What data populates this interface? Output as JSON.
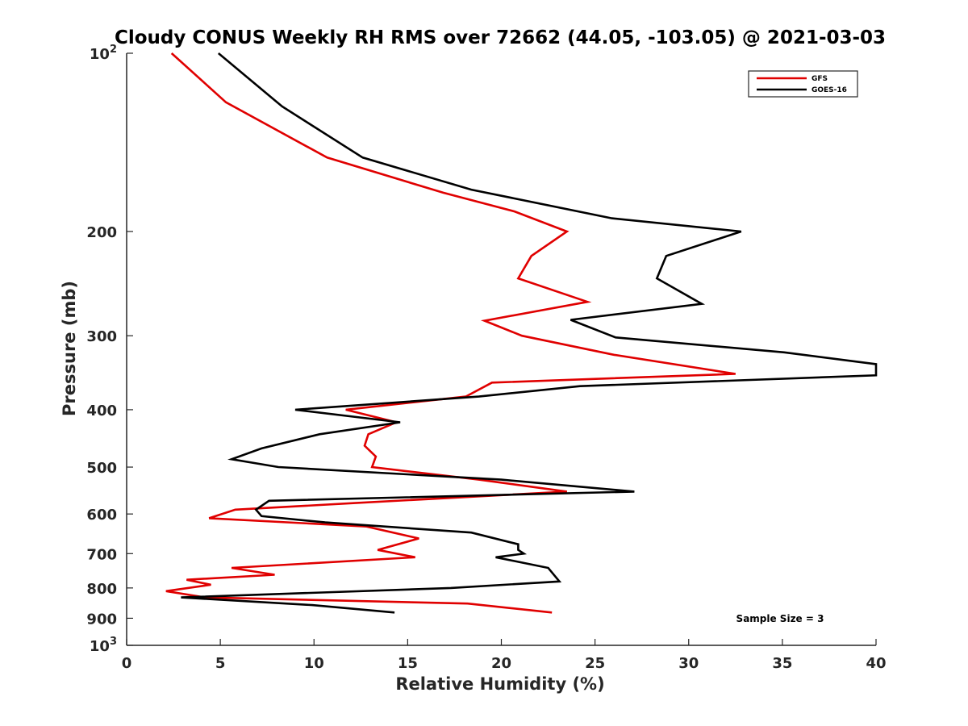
{
  "chart_data": {
    "type": "line",
    "title": "Cloudy CONUS Weekly RH RMS over 72662 (44.05, -103.05) @ 2021-03-03",
    "xlabel": "Relative Humidity (%)",
    "ylabel": "Pressure (mb)",
    "xlim": [
      0,
      40
    ],
    "ylim": [
      100,
      1000
    ],
    "y_scale": "log",
    "y_reversed": true,
    "x_ticks": [
      "0",
      "5",
      "10",
      "15",
      "20",
      "25",
      "30",
      "35",
      "40"
    ],
    "y_ticks": [
      {
        "value": 100,
        "base": "10",
        "exp": "2"
      },
      {
        "value": 200,
        "label": "200"
      },
      {
        "value": 300,
        "label": "300"
      },
      {
        "value": 400,
        "label": "400"
      },
      {
        "value": 500,
        "label": "500"
      },
      {
        "value": 600,
        "label": "600"
      },
      {
        "value": 700,
        "label": "700"
      },
      {
        "value": 800,
        "label": "800"
      },
      {
        "value": 900,
        "label": "900"
      },
      {
        "value": 1000,
        "base": "10",
        "exp": "3"
      }
    ],
    "grid": false,
    "legend_position": "top-right",
    "series": [
      {
        "name": "GFS",
        "color": "#e00000",
        "points": [
          [
            2.4,
            100
          ],
          [
            5.3,
            121
          ],
          [
            10.7,
            150
          ],
          [
            16.9,
            172
          ],
          [
            20.7,
            185
          ],
          [
            23.5,
            200
          ],
          [
            21.6,
            220
          ],
          [
            20.9,
            240
          ],
          [
            24.6,
            263
          ],
          [
            19.1,
            283
          ],
          [
            21.1,
            300
          ],
          [
            26.0,
            323
          ],
          [
            32.5,
            348
          ],
          [
            19.5,
            360
          ],
          [
            18.1,
            380
          ],
          [
            11.7,
            400
          ],
          [
            14.4,
            420
          ],
          [
            12.9,
            440
          ],
          [
            12.7,
            460
          ],
          [
            13.3,
            480
          ],
          [
            13.1,
            500
          ],
          [
            18.8,
            525
          ],
          [
            23.5,
            550
          ],
          [
            12.2,
            575
          ],
          [
            5.8,
            590
          ],
          [
            4.4,
            610
          ],
          [
            12.8,
            630
          ],
          [
            15.6,
            660
          ],
          [
            13.4,
            690
          ],
          [
            15.4,
            710
          ],
          [
            5.6,
            740
          ],
          [
            7.9,
            760
          ],
          [
            3.2,
            775
          ],
          [
            4.5,
            790
          ],
          [
            2.1,
            810
          ],
          [
            4.2,
            830
          ],
          [
            18.2,
            850
          ],
          [
            22.7,
            880
          ]
        ]
      },
      {
        "name": "GOES-16",
        "color": "#000000",
        "points": [
          [
            4.9,
            100
          ],
          [
            8.3,
            123
          ],
          [
            12.6,
            150
          ],
          [
            18.4,
            170
          ],
          [
            25.9,
            190
          ],
          [
            32.8,
            200
          ],
          [
            28.8,
            220
          ],
          [
            28.3,
            240
          ],
          [
            30.7,
            265
          ],
          [
            23.7,
            282
          ],
          [
            26.1,
            302
          ],
          [
            35.1,
            320
          ],
          [
            40.0,
            335
          ],
          [
            40.0,
            350
          ],
          [
            24.2,
            365
          ],
          [
            18.8,
            380
          ],
          [
            9.0,
            400
          ],
          [
            14.6,
            420
          ],
          [
            10.3,
            440
          ],
          [
            7.2,
            465
          ],
          [
            5.6,
            485
          ],
          [
            8.1,
            500
          ],
          [
            20.0,
            525
          ],
          [
            27.1,
            550
          ],
          [
            7.6,
            570
          ],
          [
            6.9,
            590
          ],
          [
            7.2,
            605
          ],
          [
            10.6,
            620
          ],
          [
            18.4,
            645
          ],
          [
            20.9,
            675
          ],
          [
            20.9,
            690
          ],
          [
            21.2,
            700
          ],
          [
            19.7,
            710
          ],
          [
            22.5,
            740
          ],
          [
            23.1,
            780
          ],
          [
            17.3,
            800
          ],
          [
            2.9,
            830
          ],
          [
            9.9,
            855
          ],
          [
            14.3,
            880
          ]
        ]
      }
    ],
    "annotation": "Sample Size = 3"
  }
}
